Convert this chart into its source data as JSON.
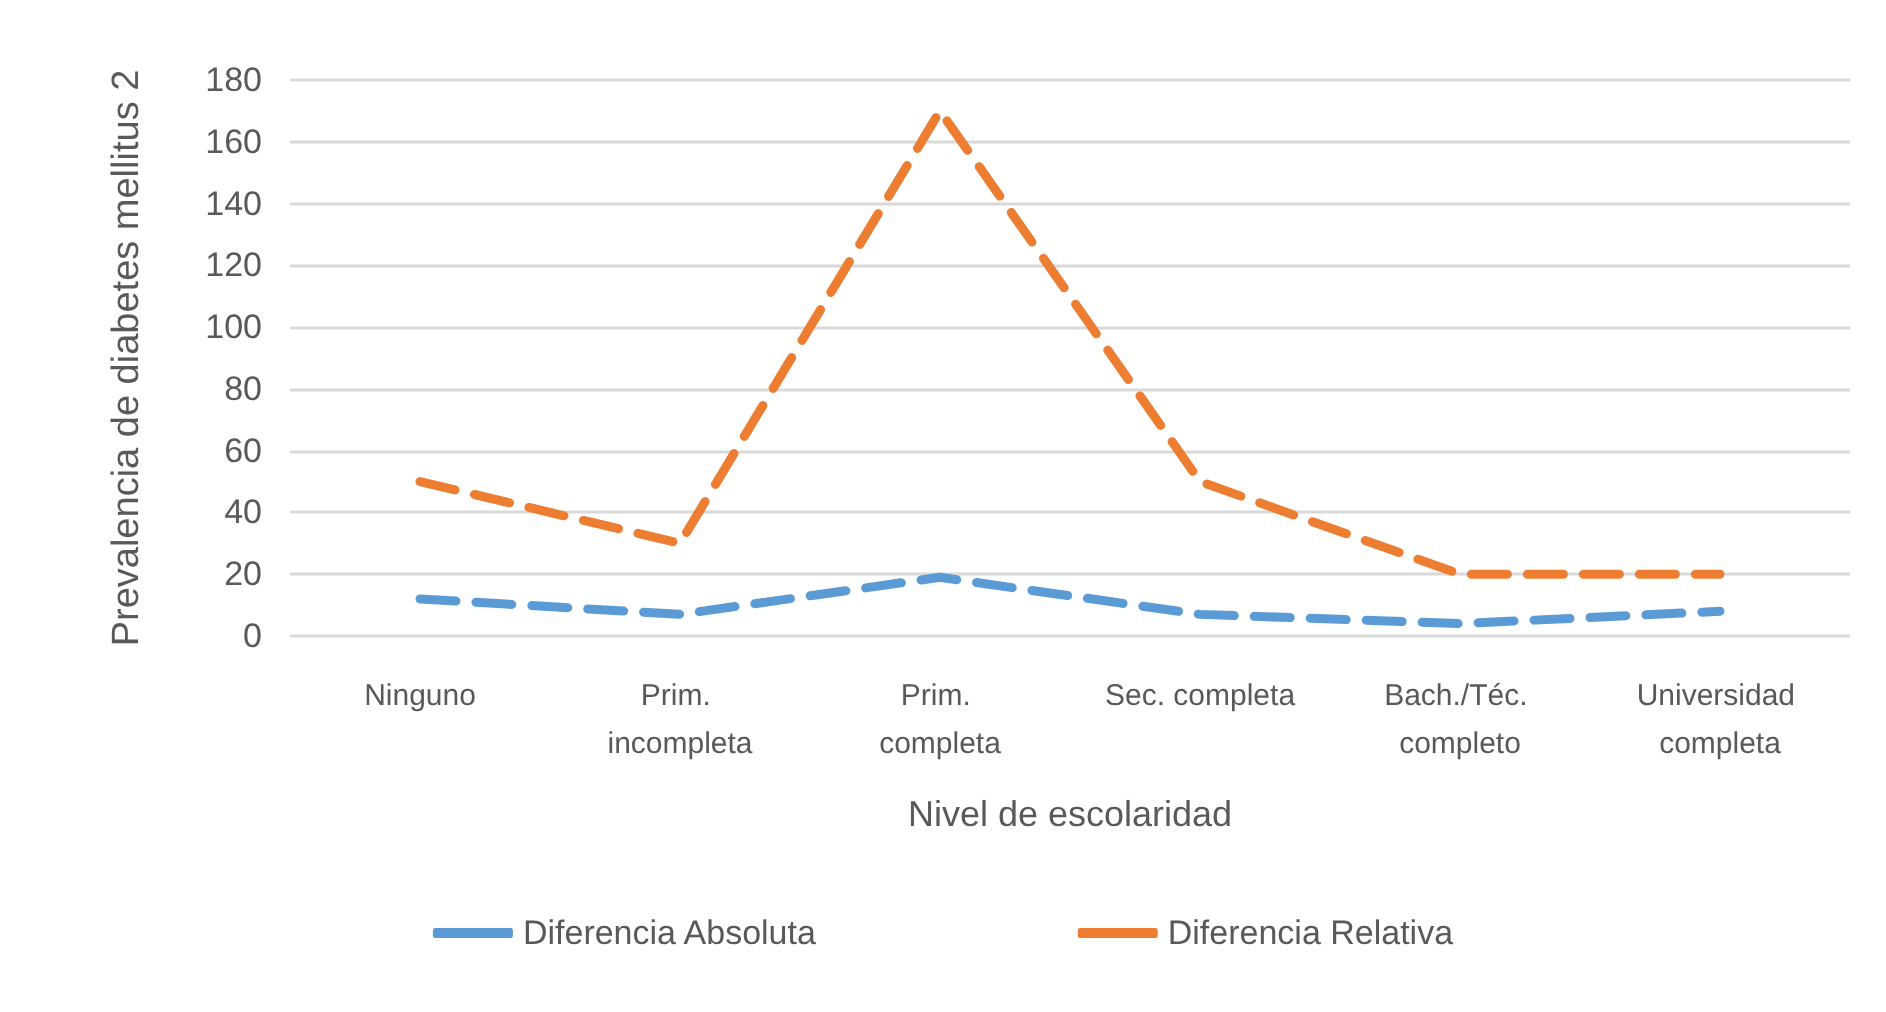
{
  "chart_data": {
    "type": "line",
    "xlabel": "Nivel de escolaridad",
    "ylabel": "Prevalencia de diabetes mellitus 2",
    "categories": [
      "Ninguno",
      "Prim. incompleta",
      "Prim. completa",
      "Sec. completa",
      "Bach./Téc. completo",
      "Universidad completa"
    ],
    "series": [
      {
        "name": "Diferencia Absoluta",
        "color": "#5b9bd5",
        "values": [
          12,
          7,
          19,
          7,
          4,
          8
        ]
      },
      {
        "name": "Diferencia Relativa",
        "color": "#ed7d31",
        "values": [
          50,
          30,
          170,
          50,
          20,
          20
        ]
      }
    ],
    "ylim": [
      0,
      180
    ],
    "yticks": [
      0,
      20,
      40,
      60,
      80,
      100,
      120,
      140,
      160,
      180
    ],
    "grid": "y",
    "legend": "bottom",
    "marker": "none",
    "line_style": "dashed"
  }
}
